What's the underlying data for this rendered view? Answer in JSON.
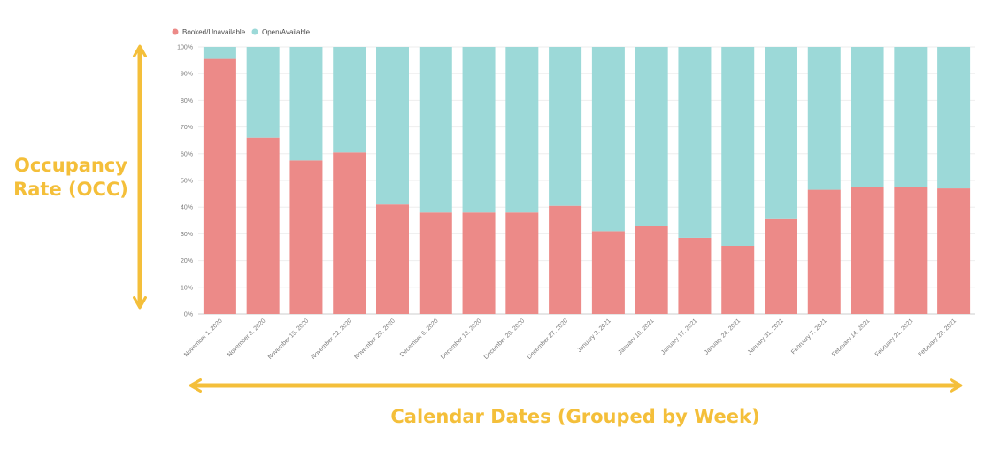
{
  "colors": {
    "booked": "#ec8a88",
    "open": "#9cd9d8",
    "accent": "#f4bf3a",
    "grid": "#eeeeee",
    "axis": "#cccccc"
  },
  "annotations": {
    "y_line1": "Occupancy",
    "y_line2": "Rate (OCC)",
    "x_label": "Calendar Dates (Grouped by Week)"
  },
  "chart_data": {
    "type": "bar",
    "stacked": true,
    "normalized": true,
    "title": "",
    "xlabel": "Calendar Dates (Grouped by Week)",
    "ylabel": "Occupancy Rate (OCC)",
    "ylim": [
      0,
      100
    ],
    "yticks": [
      "0%",
      "10%",
      "20%",
      "30%",
      "40%",
      "50%",
      "60%",
      "70%",
      "80%",
      "90%",
      "100%"
    ],
    "legend_position": "top-left",
    "grid": true,
    "categories": [
      "November 1, 2020",
      "November 8, 2020",
      "November 15, 2020",
      "November 22, 2020",
      "November 29, 2020",
      "December 6, 2020",
      "December 13, 2020",
      "December 20, 2020",
      "December 27, 2020",
      "January 3, 2021",
      "January 10, 2021",
      "January 17, 2021",
      "January 24, 2021",
      "January 31, 2021",
      "February 7, 2021",
      "February 14, 2021",
      "February 21, 2021",
      "February 28, 2021"
    ],
    "series": [
      {
        "name": "Booked/Unavailable",
        "values": [
          95.5,
          66,
          57.5,
          60.5,
          41,
          38,
          38,
          38,
          40.5,
          31,
          33,
          28.5,
          25.5,
          35.5,
          46.5,
          47.5,
          47.5,
          47
        ]
      },
      {
        "name": "Open/Available",
        "values": [
          4.5,
          34,
          42.5,
          39.5,
          59,
          62,
          62,
          62,
          59.5,
          69,
          67,
          71.5,
          74.5,
          64.5,
          53.5,
          52.5,
          52.5,
          53
        ]
      }
    ]
  }
}
